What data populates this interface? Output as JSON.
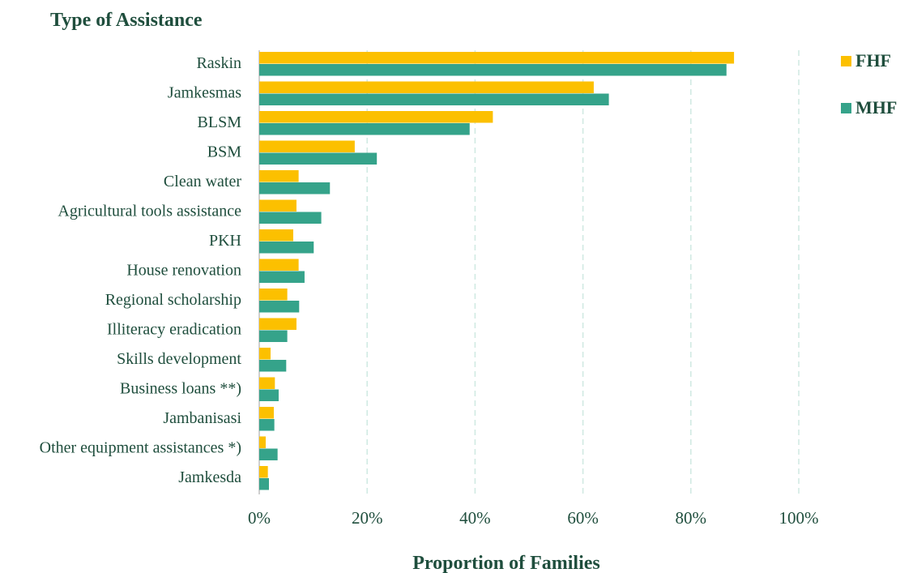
{
  "chart_data": {
    "type": "bar",
    "orientation": "horizontal",
    "title": "Type of Assistance",
    "xlabel": "Proportion of Families",
    "ylabel": "",
    "xlim": [
      0,
      100
    ],
    "x_ticks": [
      "0%",
      "20%",
      "40%",
      "60%",
      "80%",
      "100%"
    ],
    "grid": true,
    "legend_position": "top-right",
    "categories": [
      "Raskin",
      "Jamkesmas",
      "BLSM",
      "BSM",
      "Clean water",
      "Agricultural tools assistance",
      "PKH",
      "House renovation",
      "Regional scholarship",
      "Illiteracy eradication",
      "Skills development",
      "Business loans **)",
      "Jambanisasi",
      "Other equipment assistances *)",
      "Jamkesda"
    ],
    "series": [
      {
        "name": "FHF",
        "color": "#fcc000",
        "values": [
          88,
          62,
          43.3,
          17.7,
          7.3,
          6.9,
          6.3,
          7.3,
          5.2,
          6.9,
          2.1,
          2.9,
          2.7,
          1.2,
          1.6
        ]
      },
      {
        "name": "MHF",
        "color": "#35a38a",
        "values": [
          86.6,
          64.8,
          39,
          21.8,
          13.1,
          11.5,
          10.1,
          8.4,
          7.4,
          5.2,
          5,
          3.6,
          2.8,
          3.4,
          1.8
        ]
      }
    ]
  }
}
